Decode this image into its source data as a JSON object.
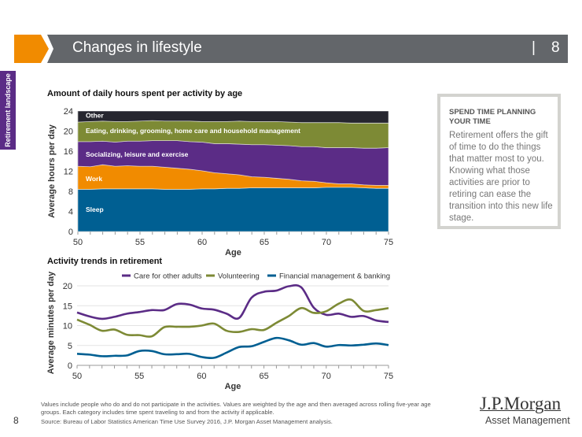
{
  "header": {
    "title": "Changes in lifestyle",
    "separator": "|",
    "page_number": "8"
  },
  "sidebar": {
    "section_label": "Retirement landscape"
  },
  "colors": {
    "orange": "#f18b00",
    "header_gray": "#63666a",
    "purple": "#5b2c86",
    "sleep": "#005f92",
    "work": "#f18b00",
    "social": "#5b2c86",
    "eating": "#7d8a35",
    "other": "#26262f",
    "care": "#5b2c86",
    "volunteering": "#7d8a35",
    "financial": "#005f92"
  },
  "callout": {
    "heading": "SPEND TIME PLANNING YOUR TIME",
    "body": "Retirement offers the gift of time to do the things that matter most to you. Knowing what those activities are prior to retiring can ease the transition into this new life stage."
  },
  "footer": {
    "note": "Values include people who do and do not participate in the activities. Values are weighted by the age and then averaged across rolling five-year age groups. Each category includes time spent traveling to and from the activity if applicable.",
    "source": "Source: Bureau of Labor Statistics American Time Use Survey 2016, J.P. Morgan Asset Management analysis.",
    "page_number": "8",
    "logo_line1": "J.P.Morgan",
    "logo_line2": "Asset Management"
  },
  "chart_data": [
    {
      "type": "area",
      "stacked": true,
      "title": "Amount of daily hours spent per activity by age",
      "xlabel": "Age",
      "ylabel": "Average hours per day",
      "xlim": [
        50,
        75
      ],
      "ylim": [
        0,
        24
      ],
      "xticks": [
        50,
        55,
        60,
        65,
        70,
        75
      ],
      "yticks": [
        0,
        4,
        8,
        12,
        16,
        20,
        24
      ],
      "x": [
        50,
        51,
        52,
        53,
        54,
        55,
        56,
        57,
        58,
        59,
        60,
        61,
        62,
        63,
        64,
        65,
        66,
        67,
        68,
        69,
        70,
        71,
        72,
        73,
        74,
        75
      ],
      "series": [
        {
          "name": "Sleep",
          "key": "sleep",
          "values": [
            8.4,
            8.4,
            8.5,
            8.5,
            8.5,
            8.5,
            8.5,
            8.4,
            8.4,
            8.4,
            8.5,
            8.5,
            8.6,
            8.6,
            8.7,
            8.7,
            8.7,
            8.7,
            8.7,
            8.7,
            8.8,
            8.8,
            8.8,
            8.7,
            8.6,
            8.6
          ]
        },
        {
          "name": "Work",
          "key": "work",
          "values": [
            4.6,
            4.5,
            4.8,
            4.5,
            4.6,
            4.5,
            4.5,
            4.4,
            4.2,
            4.0,
            3.6,
            3.2,
            2.9,
            2.7,
            2.2,
            2.1,
            1.9,
            1.7,
            1.4,
            1.3,
            0.9,
            0.7,
            0.7,
            0.6,
            0.6,
            0.6
          ]
        },
        {
          "name": "Socializing, leisure and exercise",
          "key": "social",
          "values": [
            4.9,
            5.0,
            4.7,
            4.8,
            4.9,
            5.0,
            5.1,
            5.3,
            5.5,
            5.5,
            5.7,
            5.8,
            6.0,
            6.1,
            6.4,
            6.5,
            6.6,
            6.7,
            6.8,
            6.9,
            7.0,
            7.2,
            7.2,
            7.3,
            7.4,
            7.5
          ]
        },
        {
          "name": "Eating, drinking, grooming, home care and household management",
          "key": "eating",
          "values": [
            3.9,
            4.0,
            4.0,
            4.1,
            3.9,
            4.0,
            4.0,
            3.9,
            3.9,
            4.1,
            4.1,
            4.4,
            4.4,
            4.6,
            4.6,
            4.6,
            4.7,
            4.7,
            4.8,
            4.8,
            5.0,
            5.0,
            4.9,
            5.0,
            5.0,
            4.9
          ]
        },
        {
          "name": "Other",
          "key": "other",
          "values": [
            2.2,
            2.1,
            2.0,
            2.1,
            2.1,
            2.0,
            1.9,
            2.0,
            2.0,
            2.0,
            2.1,
            2.1,
            2.1,
            2.0,
            2.1,
            2.1,
            2.1,
            2.2,
            2.3,
            2.3,
            2.3,
            2.3,
            2.4,
            2.4,
            2.4,
            2.4
          ]
        }
      ]
    },
    {
      "type": "line",
      "title": "Activity trends in retirement",
      "xlabel": "Age",
      "ylabel": "Average minutes per day",
      "xlim": [
        50,
        75
      ],
      "ylim": [
        0,
        20
      ],
      "xticks": [
        50,
        55,
        60,
        65,
        70,
        75
      ],
      "yticks": [
        0,
        5,
        10,
        15,
        20
      ],
      "legend": "top",
      "x": [
        50,
        51,
        52,
        53,
        54,
        55,
        56,
        57,
        58,
        59,
        60,
        61,
        62,
        63,
        64,
        65,
        66,
        67,
        68,
        69,
        70,
        71,
        72,
        73,
        74,
        75
      ],
      "series": [
        {
          "name": "Care for other adults",
          "key": "care",
          "values": [
            13.3,
            12.3,
            11.7,
            12.2,
            13.0,
            13.4,
            13.9,
            13.9,
            15.4,
            15.3,
            14.3,
            14.0,
            13.0,
            11.9,
            17.0,
            18.5,
            18.8,
            19.9,
            19.6,
            14.5,
            12.7,
            13.0,
            12.2,
            12.4,
            11.3,
            10.9
          ]
        },
        {
          "name": "Volunteering",
          "key": "volunteering",
          "values": [
            11.5,
            10.2,
            8.7,
            9.0,
            7.7,
            7.6,
            7.3,
            9.6,
            9.7,
            9.7,
            10.0,
            10.5,
            8.7,
            8.4,
            9.1,
            8.9,
            10.7,
            12.4,
            14.4,
            13.2,
            13.6,
            15.5,
            16.5,
            13.7,
            13.9,
            14.4
          ]
        },
        {
          "name": "Financial management & banking",
          "key": "financial",
          "values": [
            2.9,
            2.7,
            2.3,
            2.4,
            2.5,
            3.6,
            3.6,
            2.8,
            2.8,
            2.9,
            2.1,
            1.9,
            3.2,
            4.6,
            4.8,
            5.9,
            6.9,
            6.3,
            5.2,
            5.6,
            4.7,
            5.1,
            5.0,
            5.2,
            5.5,
            5.1
          ]
        }
      ]
    }
  ]
}
